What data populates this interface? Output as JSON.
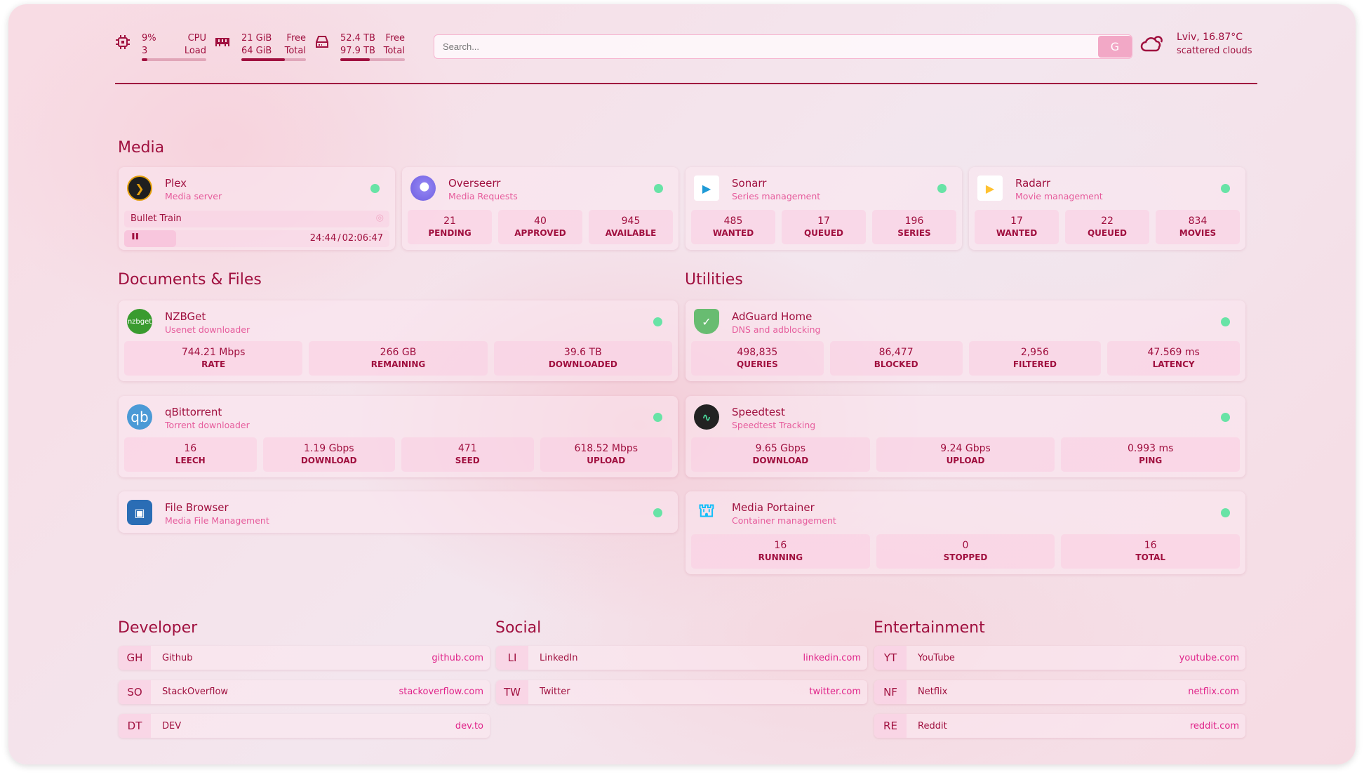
{
  "header": {
    "cpu": {
      "value": "9%",
      "load": "3",
      "label1": "CPU",
      "label2": "Load",
      "fraction": 0.09
    },
    "memory": {
      "free": "21 GiB",
      "total": "64 GiB",
      "label1": "Free",
      "label2": "Total",
      "fraction": 0.67
    },
    "disk": {
      "free": "52.4 TB",
      "total": "97.9 TB",
      "label1": "Free",
      "label2": "Total",
      "fraction": 0.46
    },
    "search_placeholder": "Search...",
    "search_button": "G",
    "weather": {
      "location": "Lviv, 16.87°C",
      "condition": "scattered clouds",
      "icon": "cloud-sun-icon"
    }
  },
  "colors": {
    "accent": "#a0103f",
    "subtitle": "#e65c9c",
    "status_up": "#68e3a6"
  },
  "media": {
    "title": "Media",
    "cards": [
      {
        "name": "Plex",
        "desc": "Media server",
        "icon": "plex-icon",
        "now_playing": {
          "title": "Bullet Train",
          "position": "24:44",
          "duration": "02:06:47",
          "separator": "/",
          "progress": 0.196,
          "state": "paused"
        }
      },
      {
        "name": "Overseerr",
        "desc": "Media Requests",
        "icon": "overseerr-icon",
        "stats": [
          {
            "value": "21",
            "label": "PENDING"
          },
          {
            "value": "40",
            "label": "APPROVED"
          },
          {
            "value": "945",
            "label": "AVAILABLE"
          }
        ]
      },
      {
        "name": "Sonarr",
        "desc": "Series management",
        "icon": "sonarr-icon",
        "stats": [
          {
            "value": "485",
            "label": "WANTED"
          },
          {
            "value": "17",
            "label": "QUEUED"
          },
          {
            "value": "196",
            "label": "SERIES"
          }
        ]
      },
      {
        "name": "Radarr",
        "desc": "Movie management",
        "icon": "radarr-icon",
        "stats": [
          {
            "value": "17",
            "label": "WANTED"
          },
          {
            "value": "22",
            "label": "QUEUED"
          },
          {
            "value": "834",
            "label": "MOVIES"
          }
        ]
      }
    ]
  },
  "documents": {
    "title": "Documents & Files",
    "cards": [
      {
        "name": "NZBGet",
        "desc": "Usenet downloader",
        "icon": "nzbget-icon",
        "icon_text": "nzbget",
        "stats": [
          {
            "value": "744.21 Mbps",
            "label": "RATE"
          },
          {
            "value": "266 GB",
            "label": "REMAINING"
          },
          {
            "value": "39.6 TB",
            "label": "DOWNLOADED"
          }
        ]
      },
      {
        "name": "qBittorrent",
        "desc": "Torrent downloader",
        "icon": "qbittorrent-icon",
        "icon_text": "qb",
        "stats": [
          {
            "value": "16",
            "label": "LEECH"
          },
          {
            "value": "1.19 Gbps",
            "label": "DOWNLOAD"
          },
          {
            "value": "471",
            "label": "SEED"
          },
          {
            "value": "618.52 Mbps",
            "label": "UPLOAD"
          }
        ]
      },
      {
        "name": "File Browser",
        "desc": "Media File Management",
        "icon": "filebrowser-icon"
      }
    ]
  },
  "utilities": {
    "title": "Utilities",
    "cards": [
      {
        "name": "AdGuard Home",
        "desc": "DNS and adblocking",
        "icon": "adguard-icon",
        "stats": [
          {
            "value": "498,835",
            "label": "QUERIES"
          },
          {
            "value": "86,477",
            "label": "BLOCKED"
          },
          {
            "value": "2,956",
            "label": "FILTERED"
          },
          {
            "value": "47.569 ms",
            "label": "LATENCY"
          }
        ]
      },
      {
        "name": "Speedtest",
        "desc": "Speedtest Tracking",
        "icon": "speedtest-icon",
        "stats": [
          {
            "value": "9.65 Gbps",
            "label": "DOWNLOAD"
          },
          {
            "value": "9.24 Gbps",
            "label": "UPLOAD"
          },
          {
            "value": "0.993 ms",
            "label": "PING"
          }
        ]
      },
      {
        "name": "Media Portainer",
        "desc": "Container management",
        "icon": "portainer-icon",
        "stats": [
          {
            "value": "16",
            "label": "RUNNING"
          },
          {
            "value": "0",
            "label": "STOPPED"
          },
          {
            "value": "16",
            "label": "TOTAL"
          }
        ]
      }
    ]
  },
  "bookmarks": [
    {
      "title": "Developer",
      "items": [
        {
          "abbr": "GH",
          "name": "Github",
          "url": "github.com"
        },
        {
          "abbr": "SO",
          "name": "StackOverflow",
          "url": "stackoverflow.com"
        },
        {
          "abbr": "DT",
          "name": "DEV",
          "url": "dev.to"
        }
      ]
    },
    {
      "title": "Social",
      "items": [
        {
          "abbr": "LI",
          "name": "LinkedIn",
          "url": "linkedin.com"
        },
        {
          "abbr": "TW",
          "name": "Twitter",
          "url": "twitter.com"
        }
      ]
    },
    {
      "title": "Entertainment",
      "items": [
        {
          "abbr": "YT",
          "name": "YouTube",
          "url": "youtube.com"
        },
        {
          "abbr": "NF",
          "name": "Netflix",
          "url": "netflix.com"
        },
        {
          "abbr": "RE",
          "name": "Reddit",
          "url": "reddit.com"
        }
      ]
    }
  ]
}
